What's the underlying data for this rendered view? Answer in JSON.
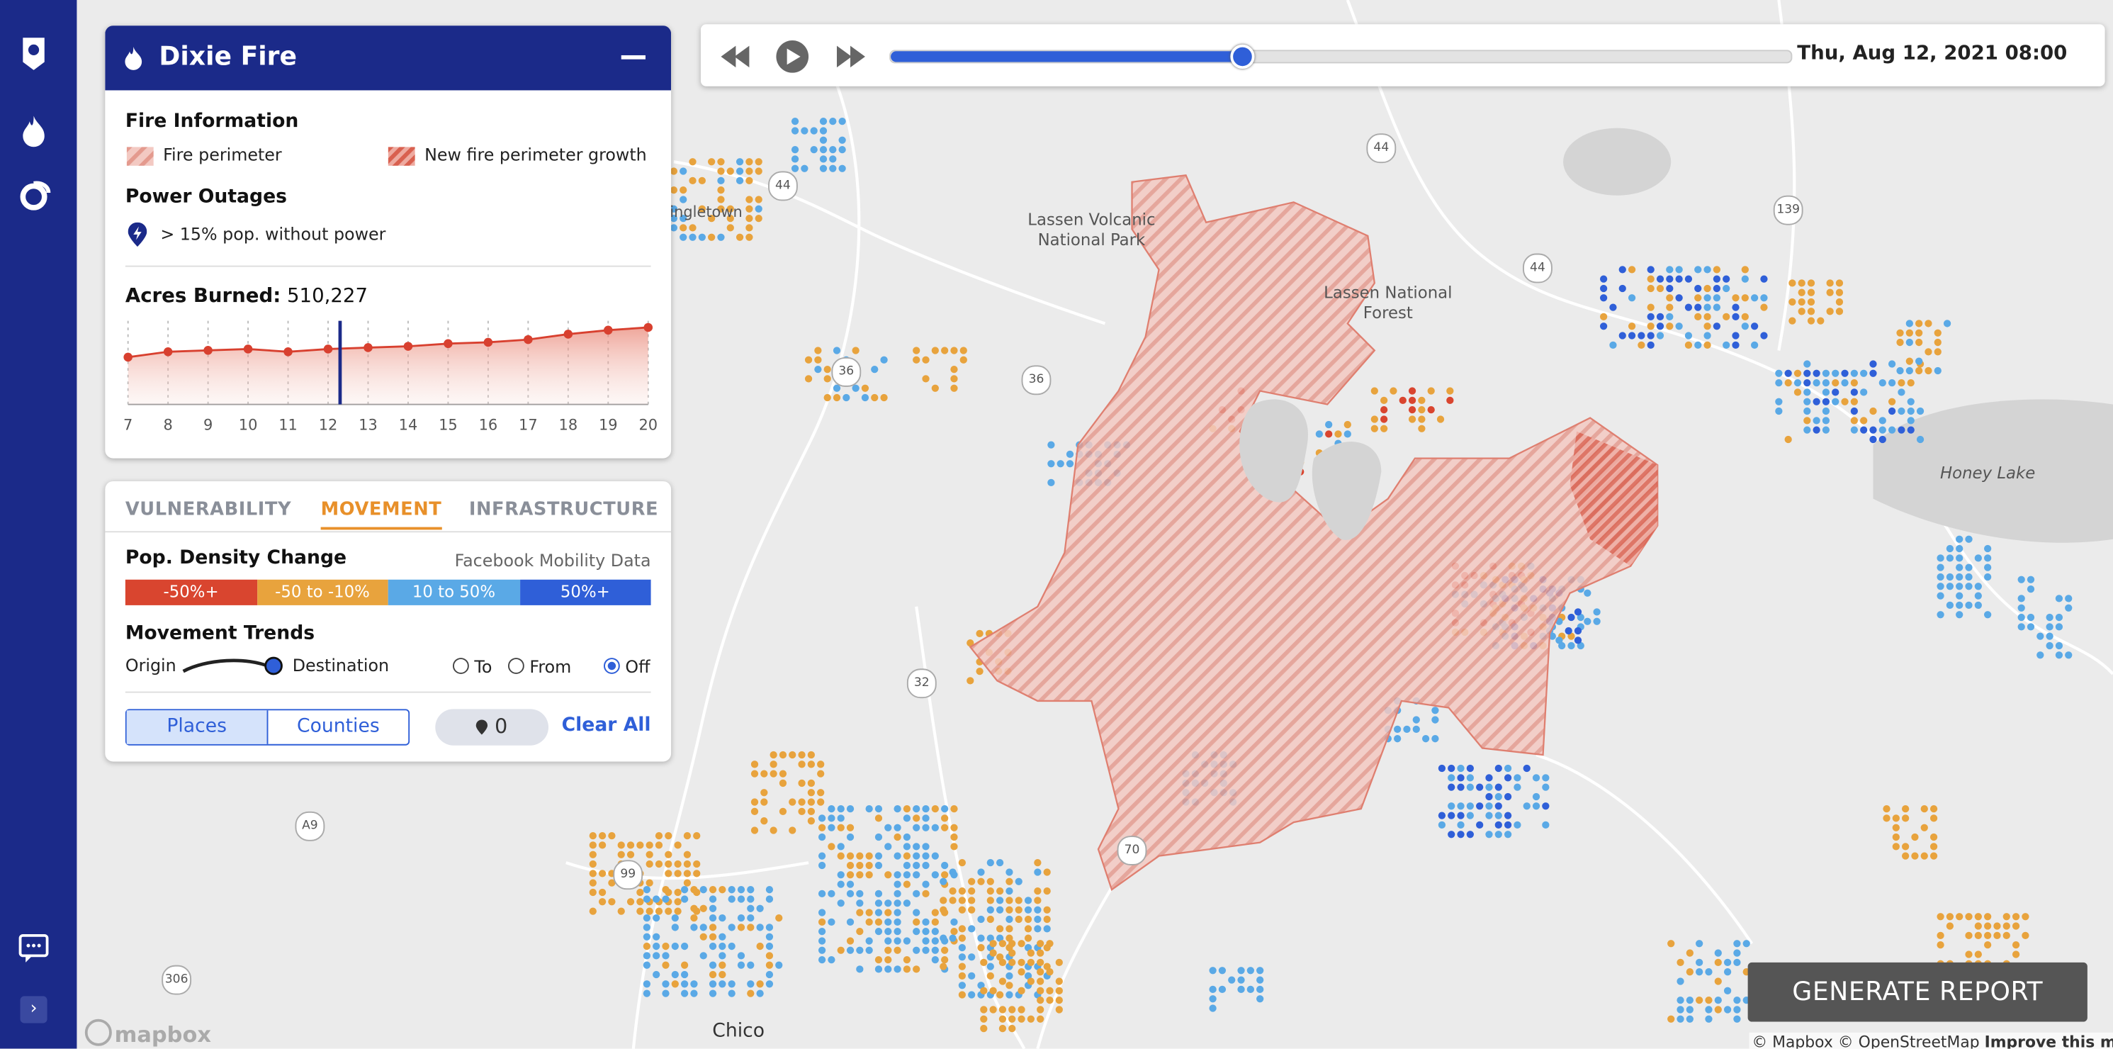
{
  "timeline": {
    "date": "Thu, Aug 12, 2021 08:00",
    "progress": 0.39
  },
  "panel": {
    "title": "Dixie Fire",
    "fire_info": {
      "heading": "Fire Information",
      "legend": [
        "Fire perimeter",
        "New fire perimeter growth"
      ]
    },
    "power": {
      "heading": "Power Outages",
      "legend": "> 15% pop. without power"
    },
    "acres": {
      "label": "Acres Burned:",
      "value": "510,227"
    }
  },
  "chart_data": {
    "type": "line",
    "x": [
      7,
      8,
      9,
      10,
      11,
      12,
      13,
      14,
      15,
      16,
      17,
      18,
      19,
      20
    ],
    "values": [
      435000,
      485000,
      498000,
      510000,
      485000,
      510000,
      523000,
      535000,
      560000,
      572000,
      597000,
      647000,
      684000,
      709000
    ],
    "xlim": [
      7,
      20
    ],
    "ylim": [
      0,
      770000
    ],
    "xticks": [
      7,
      8,
      9,
      10,
      11,
      12,
      13,
      14,
      15,
      16,
      17,
      18,
      19,
      20
    ],
    "current_x": 12.3,
    "color": "#d8402f"
  },
  "tabs": [
    "VULNERABILITY",
    "MOVEMENT",
    "INFRASTRUCTURE"
  ],
  "density": {
    "heading": "Pop. Density Change",
    "source": "Facebook Mobility Data",
    "legend": [
      {
        "label": "-50%+",
        "color": "#d9452f"
      },
      {
        "label": "-50 to -10%",
        "color": "#e8a33d"
      },
      {
        "label": "10 to 50%",
        "color": "#5aa9e6"
      },
      {
        "label": "50%+",
        "color": "#2f5fd8"
      }
    ]
  },
  "movement": {
    "heading": "Movement Trends",
    "origin": "Origin",
    "destination": "Destination",
    "options": [
      "To",
      "From",
      "Off"
    ]
  },
  "buttons": {
    "places": "Places",
    "counties": "Counties",
    "pin_count": 0,
    "clear": "Clear All",
    "report": "GENERATE REPORT"
  },
  "map": {
    "labels": [
      "Lassen Volcanic National Park",
      "Lassen National Forest",
      "Honey Lake",
      "Chico",
      "ingletown"
    ],
    "shields": [
      "44",
      "44",
      "44",
      "139",
      "36",
      "36",
      "32",
      "70",
      "99",
      "A9",
      "306"
    ],
    "attribution": "© Mapbox © OpenStreetMap",
    "improve": "Improve this ma",
    "logo": "mapbox"
  }
}
